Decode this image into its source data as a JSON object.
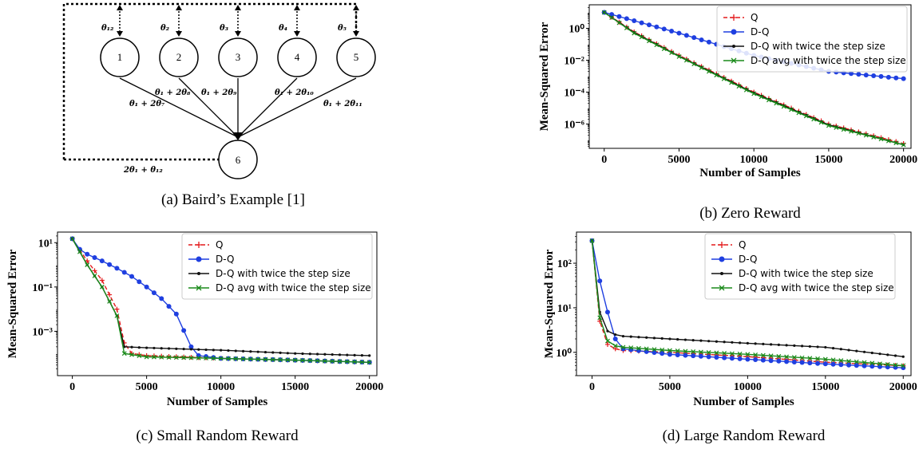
{
  "colors": {
    "Q": "#e41a1c",
    "D-Q": "#1f3fe0",
    "D-Q with twice the step size": "#111111",
    "D-Q avg with twice the step size": "#1a8a1a"
  },
  "diagram": {
    "caption": "(a) Baird’s Example [1]",
    "nodes": [
      "1",
      "2",
      "3",
      "4",
      "5",
      "6"
    ],
    "top_labels": [
      "θ₁₂",
      "θ₂",
      "θ₃",
      "θ₄",
      "θ₅"
    ],
    "edge_labels": [
      "θ₁ + 2θ₇",
      "θ₁ + 2θ₈",
      "θ₁ + 2θ₉",
      "θ₁ + 2θ₁₀",
      "θ₁ + 2θ₁₁"
    ],
    "bottom_label": "2θ₁ + θ₁₂"
  },
  "chart_data": [
    {
      "id": "b",
      "type": "line",
      "caption": "(b) Zero Reward",
      "xlabel": "Number of Samples",
      "ylabel": "Mean-Squared Error",
      "yscale": "log",
      "xlim": [
        -1000,
        20500
      ],
      "ylim": [
        3e-08,
        30
      ],
      "xticks": [
        0,
        5000,
        10000,
        15000,
        20000
      ],
      "yticks": [
        {
          "v": 1,
          "t": "10⁰"
        },
        {
          "v": 0.01,
          "t": "10⁻²"
        },
        {
          "v": 0.0001,
          "t": "10⁻⁴"
        },
        {
          "v": 1e-06,
          "t": "10⁻⁶"
        }
      ],
      "series": [
        {
          "name": "Q",
          "x": [
            0,
            2000,
            5000,
            10000,
            15000,
            20000
          ],
          "y": [
            10,
            0.6,
            0.02,
            0.0001,
            1e-06,
            6e-08
          ]
        },
        {
          "name": "D-Q",
          "x": [
            0,
            2000,
            5000,
            10000,
            15000,
            20000
          ],
          "y": [
            10,
            3,
            0.5,
            0.02,
            0.002,
            0.0007
          ]
        },
        {
          "name": "D-Q with twice the step size",
          "x": [
            0,
            2000,
            5000,
            10000,
            15000,
            20000
          ],
          "y": [
            10,
            0.55,
            0.018,
            9e-05,
            9e-07,
            5e-08
          ]
        },
        {
          "name": "D-Q avg with twice the step size",
          "x": [
            0,
            2000,
            5000,
            10000,
            15000,
            20000
          ],
          "y": [
            10,
            0.5,
            0.017,
            8e-05,
            8e-07,
            5e-08
          ]
        }
      ],
      "legend": [
        "Q",
        "D-Q",
        "D-Q with twice the step size",
        "D-Q avg with twice the step size"
      ]
    },
    {
      "id": "c",
      "type": "line",
      "caption": "(c) Small Random Reward",
      "xlabel": "Number of Samples",
      "ylabel": "Mean-Squared Error",
      "yscale": "log",
      "xlim": [
        -1000,
        20500
      ],
      "ylim": [
        1e-05,
        30
      ],
      "xticks": [
        0,
        5000,
        10000,
        15000,
        20000
      ],
      "yticks": [
        {
          "v": 10,
          "t": "10¹"
        },
        {
          "v": 0.1,
          "t": "10⁻¹"
        },
        {
          "v": 0.001,
          "t": "10⁻³"
        }
      ],
      "series": [
        {
          "name": "Q",
          "x": [
            0,
            1000,
            2000,
            3000,
            3500,
            4000,
            5000,
            10000,
            15000,
            20000
          ],
          "y": [
            15,
            1.5,
            0.2,
            0.01,
            0.0003,
            0.0001,
            8e-05,
            6e-05,
            5e-05,
            4e-05
          ]
        },
        {
          "name": "D-Q",
          "x": [
            0,
            500,
            1000,
            2000,
            3000,
            4000,
            5000,
            6000,
            7000,
            8000,
            8500,
            10000,
            15000,
            20000
          ],
          "y": [
            15,
            5,
            3,
            1.5,
            0.7,
            0.3,
            0.1,
            0.03,
            0.006,
            0.0002,
            8e-05,
            6e-05,
            5e-05,
            4e-05
          ]
        },
        {
          "name": "D-Q with twice the step size",
          "x": [
            0,
            1000,
            2000,
            3000,
            3500,
            5000,
            10000,
            15000,
            20000
          ],
          "y": [
            15,
            1,
            0.1,
            0.005,
            0.0002,
            0.00018,
            0.00014,
            0.0001,
            8e-05
          ]
        },
        {
          "name": "D-Q avg with twice the step size",
          "x": [
            0,
            1000,
            2000,
            3000,
            3500,
            5000,
            10000,
            15000,
            20000
          ],
          "y": [
            15,
            1,
            0.1,
            0.005,
            0.0001,
            7e-05,
            6e-05,
            5e-05,
            4e-05
          ]
        }
      ],
      "legend": [
        "Q",
        "D-Q",
        "D-Q with twice the step size",
        "D-Q avg with twice the step size"
      ]
    },
    {
      "id": "d",
      "type": "line",
      "caption": "(d) Large Random Reward",
      "xlabel": "Number of Samples",
      "ylabel": "Mean-Squared Error",
      "yscale": "log",
      "xlim": [
        -1000,
        20500
      ],
      "ylim": [
        0.3,
        500
      ],
      "xticks": [
        0,
        5000,
        10000,
        15000,
        20000
      ],
      "yticks": [
        {
          "v": 100,
          "t": "10²"
        },
        {
          "v": 10,
          "t": "10¹"
        },
        {
          "v": 1,
          "t": "10⁰"
        }
      ],
      "series": [
        {
          "name": "Q",
          "x": [
            0,
            500,
            1000,
            1500,
            2000,
            5000,
            10000,
            15000,
            20000
          ],
          "y": [
            320,
            5,
            1.5,
            1.2,
            1.1,
            1,
            0.8,
            0.6,
            0.5
          ]
        },
        {
          "name": "D-Q",
          "x": [
            0,
            500,
            1000,
            1500,
            2000,
            5000,
            10000,
            15000,
            20000
          ],
          "y": [
            320,
            40,
            8,
            2,
            1.2,
            0.9,
            0.7,
            0.55,
            0.45
          ]
        },
        {
          "name": "D-Q with twice the step size",
          "x": [
            0,
            500,
            1000,
            1500,
            2000,
            5000,
            10000,
            15000,
            20000
          ],
          "y": [
            320,
            8,
            3,
            2.5,
            2.3,
            2,
            1.6,
            1.3,
            0.8
          ]
        },
        {
          "name": "D-Q avg with twice the step size",
          "x": [
            0,
            500,
            1000,
            1500,
            2000,
            5000,
            10000,
            15000,
            20000
          ],
          "y": [
            320,
            6,
            1.8,
            1.4,
            1.3,
            1.1,
            0.9,
            0.7,
            0.5
          ]
        }
      ],
      "legend": [
        "Q",
        "D-Q",
        "D-Q with twice the step size",
        "D-Q avg with twice the step size"
      ]
    }
  ]
}
